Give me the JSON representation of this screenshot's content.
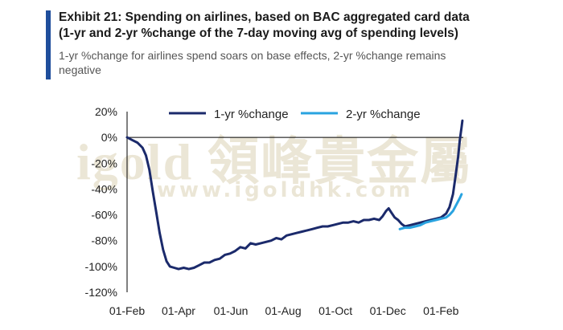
{
  "header": {
    "title_line1": "Exhibit 21: Spending on airlines, based on BAC aggregated card data",
    "title_line2": "(1-yr and 2-yr %change of the 7-day moving avg of spending levels)",
    "subtitle_line1": "1-yr %change for airlines spend soars on base effects, 2-yr %change remains",
    "subtitle_line2": "negative"
  },
  "watermark": {
    "brand": "igold 領峰貴金屬",
    "url": "www.igoldhk.com"
  },
  "colors": {
    "accent": "#1f4e9c",
    "series_1yr": "#1b2a6b",
    "series_2yr": "#29a3e0",
    "axis": "#000000"
  },
  "chart_data": {
    "type": "line",
    "title": "",
    "xlabel": "",
    "ylabel": "",
    "ylim": [
      -120,
      20
    ],
    "yticks": [
      "20%",
      "0%",
      "-20%",
      "-40%",
      "-60%",
      "-80%",
      "-100%",
      "-120%"
    ],
    "ytick_values": [
      20,
      0,
      -20,
      -40,
      -60,
      -80,
      -100,
      -120
    ],
    "xlim": [
      0,
      392
    ],
    "xticks": [
      "01-Feb",
      "01-Apr",
      "01-Jun",
      "01-Aug",
      "01-Oct",
      "01-Dec",
      "01-Feb"
    ],
    "xtick_values": [
      0,
      60,
      121,
      182,
      243,
      304,
      366
    ],
    "legend_position": "top",
    "series": [
      {
        "name": "1-yr %change",
        "color": "#1b2a6b",
        "points": [
          [
            0,
            0
          ],
          [
            6,
            -2
          ],
          [
            12,
            -4
          ],
          [
            18,
            -8
          ],
          [
            22,
            -14
          ],
          [
            26,
            -25
          ],
          [
            30,
            -42
          ],
          [
            34,
            -58
          ],
          [
            38,
            -74
          ],
          [
            42,
            -87
          ],
          [
            46,
            -96
          ],
          [
            50,
            -100
          ],
          [
            55,
            -101
          ],
          [
            60,
            -102
          ],
          [
            66,
            -101
          ],
          [
            72,
            -102
          ],
          [
            78,
            -101
          ],
          [
            84,
            -99
          ],
          [
            90,
            -97
          ],
          [
            96,
            -97
          ],
          [
            102,
            -95
          ],
          [
            108,
            -94
          ],
          [
            114,
            -91
          ],
          [
            120,
            -90
          ],
          [
            126,
            -88
          ],
          [
            132,
            -85
          ],
          [
            138,
            -86
          ],
          [
            144,
            -82
          ],
          [
            150,
            -83
          ],
          [
            156,
            -82
          ],
          [
            162,
            -81
          ],
          [
            168,
            -80
          ],
          [
            174,
            -78
          ],
          [
            180,
            -79
          ],
          [
            186,
            -76
          ],
          [
            192,
            -75
          ],
          [
            198,
            -74
          ],
          [
            204,
            -73
          ],
          [
            210,
            -72
          ],
          [
            216,
            -71
          ],
          [
            222,
            -70
          ],
          [
            228,
            -69
          ],
          [
            234,
            -69
          ],
          [
            240,
            -68
          ],
          [
            246,
            -67
          ],
          [
            252,
            -66
          ],
          [
            258,
            -66
          ],
          [
            264,
            -65
          ],
          [
            270,
            -66
          ],
          [
            276,
            -64
          ],
          [
            282,
            -64
          ],
          [
            288,
            -63
          ],
          [
            294,
            -64
          ],
          [
            298,
            -61
          ],
          [
            302,
            -57
          ],
          [
            305,
            -55
          ],
          [
            308,
            -58
          ],
          [
            312,
            -62
          ],
          [
            316,
            -64
          ],
          [
            320,
            -67
          ],
          [
            324,
            -69
          ],
          [
            330,
            -68
          ],
          [
            336,
            -67
          ],
          [
            342,
            -66
          ],
          [
            348,
            -65
          ],
          [
            354,
            -64
          ],
          [
            360,
            -63
          ],
          [
            366,
            -62
          ],
          [
            372,
            -59
          ],
          [
            376,
            -54
          ],
          [
            380,
            -44
          ],
          [
            383,
            -30
          ],
          [
            386,
            -15
          ],
          [
            388,
            -2
          ],
          [
            390,
            8
          ],
          [
            391,
            13
          ]
        ]
      },
      {
        "name": "2-yr %change",
        "color": "#29a3e0",
        "points": [
          [
            318,
            -71
          ],
          [
            324,
            -70
          ],
          [
            330,
            -70
          ],
          [
            336,
            -69
          ],
          [
            342,
            -68
          ],
          [
            348,
            -66
          ],
          [
            354,
            -65
          ],
          [
            360,
            -64
          ],
          [
            366,
            -63
          ],
          [
            372,
            -62
          ],
          [
            376,
            -60
          ],
          [
            380,
            -57
          ],
          [
            384,
            -52
          ],
          [
            388,
            -47
          ],
          [
            390,
            -44
          ]
        ]
      }
    ]
  }
}
